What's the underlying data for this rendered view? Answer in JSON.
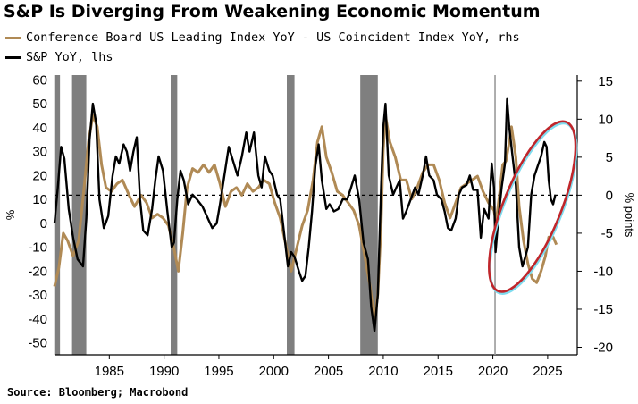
{
  "title": "S&P Is Diverging From Weakening Economic Momentum",
  "source": "Source: Bloomberg; Macrobond",
  "colors": {
    "leading_series": "#b08a55",
    "sp_series": "#000000",
    "recession": "#7f7f7f",
    "highlight": "#c0262b",
    "highlight_glow": "#7fdcef"
  },
  "chart_data": {
    "type": "line",
    "x_range": [
      1980.0,
      2027.7
    ],
    "left_ylim": [
      -55,
      62
    ],
    "right_ylim": [
      -21,
      15.8
    ],
    "left_ylabel": "%",
    "right_ylabel": "% points",
    "left_ticks": [
      "60",
      "50",
      "40",
      "30",
      "20",
      "10",
      "0",
      "-10",
      "-20",
      "-30",
      "-40",
      "-50"
    ],
    "right_ticks": [
      "15",
      "10",
      "5",
      "0",
      "-5",
      "-10",
      "-15",
      "-20"
    ],
    "x_ticks": [
      "1985",
      "1990",
      "1995",
      "2000",
      "2005",
      "2010",
      "2015",
      "2020",
      "2025"
    ],
    "reference_line": {
      "axis": "right",
      "value": 0,
      "style": "dashed"
    },
    "event_line_x": 2020.2,
    "recession_bands": [
      [
        1980.0,
        1980.5
      ],
      [
        1981.6,
        1982.9
      ],
      [
        1990.6,
        1991.2
      ],
      [
        2001.2,
        2001.9
      ],
      [
        2007.9,
        2009.5
      ]
    ],
    "series": [
      {
        "name": "Conference Board US Leading Index YoY - US Coincident Index YoY, rhs",
        "axis": "right",
        "points": [
          [
            1980.0,
            -12
          ],
          [
            1980.4,
            -9.5
          ],
          [
            1980.8,
            -5
          ],
          [
            1981.2,
            -6
          ],
          [
            1981.7,
            -8
          ],
          [
            1982.2,
            -6
          ],
          [
            1982.7,
            1
          ],
          [
            1983.1,
            7
          ],
          [
            1983.5,
            10.5
          ],
          [
            1983.9,
            9
          ],
          [
            1984.3,
            4
          ],
          [
            1984.7,
            1
          ],
          [
            1985.2,
            0.5
          ],
          [
            1985.7,
            1.5
          ],
          [
            1986.2,
            2
          ],
          [
            1986.8,
            0
          ],
          [
            1987.3,
            -1.5
          ],
          [
            1987.9,
            0
          ],
          [
            1988.4,
            -1
          ],
          [
            1988.9,
            -3
          ],
          [
            1989.4,
            -2.5
          ],
          [
            1989.9,
            -3
          ],
          [
            1990.4,
            -4
          ],
          [
            1990.9,
            -7
          ],
          [
            1991.3,
            -10
          ],
          [
            1991.7,
            -5
          ],
          [
            1992.1,
            1
          ],
          [
            1992.6,
            3.5
          ],
          [
            1993.1,
            3
          ],
          [
            1993.6,
            4
          ],
          [
            1994.1,
            3
          ],
          [
            1994.6,
            4
          ],
          [
            1995.1,
            1.5
          ],
          [
            1995.6,
            -1.5
          ],
          [
            1996.1,
            0.5
          ],
          [
            1996.6,
            1
          ],
          [
            1997.1,
            0
          ],
          [
            1997.6,
            1.5
          ],
          [
            1998.1,
            0.5
          ],
          [
            1998.6,
            1
          ],
          [
            1999.1,
            2
          ],
          [
            1999.6,
            1.5
          ],
          [
            2000.1,
            -1
          ],
          [
            2000.6,
            -3
          ],
          [
            2001.1,
            -6.5
          ],
          [
            2001.6,
            -10
          ],
          [
            2002.1,
            -7
          ],
          [
            2002.6,
            -4
          ],
          [
            2003.1,
            -2
          ],
          [
            2003.6,
            2
          ],
          [
            2004.0,
            7
          ],
          [
            2004.4,
            9
          ],
          [
            2004.8,
            5
          ],
          [
            2005.3,
            3
          ],
          [
            2005.8,
            0.5
          ],
          [
            2006.3,
            0
          ],
          [
            2006.8,
            -1
          ],
          [
            2007.3,
            -2
          ],
          [
            2007.8,
            -4
          ],
          [
            2008.3,
            -8
          ],
          [
            2008.8,
            -12
          ],
          [
            2009.2,
            -16.5
          ],
          [
            2009.5,
            -13
          ],
          [
            2009.8,
            -4
          ],
          [
            2010.0,
            6
          ],
          [
            2010.2,
            10.5
          ],
          [
            2010.6,
            7
          ],
          [
            2011.1,
            5
          ],
          [
            2011.6,
            2
          ],
          [
            2012.1,
            2
          ],
          [
            2012.6,
            -0.5
          ],
          [
            2013.1,
            1
          ],
          [
            2013.6,
            3
          ],
          [
            2014.1,
            4
          ],
          [
            2014.6,
            4
          ],
          [
            2015.1,
            2
          ],
          [
            2015.6,
            -1
          ],
          [
            2016.1,
            -3
          ],
          [
            2016.6,
            -1
          ],
          [
            2017.1,
            1
          ],
          [
            2017.6,
            1.5
          ],
          [
            2018.1,
            2
          ],
          [
            2018.6,
            2.5
          ],
          [
            2019.1,
            0.5
          ],
          [
            2019.6,
            -1
          ],
          [
            2020.1,
            -2
          ],
          [
            2020.3,
            -3.5
          ],
          [
            2020.6,
            0
          ],
          [
            2020.9,
            4
          ],
          [
            2021.2,
            4.5
          ],
          [
            2021.5,
            7
          ],
          [
            2021.7,
            9
          ],
          [
            2021.9,
            7
          ],
          [
            2022.1,
            5
          ],
          [
            2022.4,
            -1.5
          ],
          [
            2022.8,
            -6
          ],
          [
            2023.2,
            -9
          ],
          [
            2023.6,
            -11
          ],
          [
            2024.0,
            -11.5
          ],
          [
            2024.4,
            -10
          ],
          [
            2024.8,
            -8
          ],
          [
            2025.1,
            -5.5
          ],
          [
            2025.5,
            -5.5
          ],
          [
            2025.8,
            -6.5
          ]
        ]
      },
      {
        "name": "S&P YoY, lhs",
        "axis": "left",
        "points": [
          [
            1980.0,
            0
          ],
          [
            1980.3,
            15
          ],
          [
            1980.6,
            32
          ],
          [
            1980.9,
            27
          ],
          [
            1981.3,
            6
          ],
          [
            1981.7,
            -6
          ],
          [
            1982.1,
            -15
          ],
          [
            1982.6,
            -18
          ],
          [
            1982.9,
            2
          ],
          [
            1983.2,
            35
          ],
          [
            1983.5,
            50
          ],
          [
            1983.8,
            42
          ],
          [
            1984.1,
            10
          ],
          [
            1984.5,
            -2
          ],
          [
            1984.9,
            3
          ],
          [
            1985.3,
            20
          ],
          [
            1985.6,
            28
          ],
          [
            1985.9,
            25
          ],
          [
            1986.3,
            33
          ],
          [
            1986.6,
            30
          ],
          [
            1986.9,
            22
          ],
          [
            1987.2,
            30
          ],
          [
            1987.5,
            36
          ],
          [
            1987.8,
            10
          ],
          [
            1988.1,
            -3
          ],
          [
            1988.5,
            -5
          ],
          [
            1988.9,
            6
          ],
          [
            1989.2,
            18
          ],
          [
            1989.5,
            28
          ],
          [
            1989.9,
            22
          ],
          [
            1990.3,
            5
          ],
          [
            1990.7,
            -10
          ],
          [
            1990.9,
            -8
          ],
          [
            1991.2,
            10
          ],
          [
            1991.5,
            22
          ],
          [
            1991.8,
            18
          ],
          [
            1992.2,
            8
          ],
          [
            1992.6,
            12
          ],
          [
            1993.0,
            10
          ],
          [
            1993.5,
            7
          ],
          [
            1994.0,
            2
          ],
          [
            1994.4,
            -2
          ],
          [
            1994.8,
            0
          ],
          [
            1995.1,
            8
          ],
          [
            1995.5,
            20
          ],
          [
            1995.9,
            32
          ],
          [
            1996.3,
            26
          ],
          [
            1996.7,
            20
          ],
          [
            1997.1,
            28
          ],
          [
            1997.5,
            38
          ],
          [
            1997.8,
            30
          ],
          [
            1998.2,
            38
          ],
          [
            1998.6,
            20
          ],
          [
            1998.9,
            15
          ],
          [
            1999.2,
            28
          ],
          [
            1999.6,
            22
          ],
          [
            1999.9,
            20
          ],
          [
            2000.3,
            12
          ],
          [
            2000.6,
            10
          ],
          [
            2000.9,
            -2
          ],
          [
            2001.3,
            -18
          ],
          [
            2001.6,
            -12
          ],
          [
            2001.9,
            -14
          ],
          [
            2002.3,
            -20
          ],
          [
            2002.6,
            -24
          ],
          [
            2002.9,
            -22
          ],
          [
            2003.2,
            -10
          ],
          [
            2003.5,
            5
          ],
          [
            2003.8,
            24
          ],
          [
            2004.1,
            33
          ],
          [
            2004.4,
            18
          ],
          [
            2004.8,
            6
          ],
          [
            2005.1,
            8
          ],
          [
            2005.5,
            5
          ],
          [
            2005.9,
            6
          ],
          [
            2006.3,
            10
          ],
          [
            2006.7,
            10
          ],
          [
            2007.0,
            14
          ],
          [
            2007.4,
            20
          ],
          [
            2007.8,
            10
          ],
          [
            2008.2,
            -8
          ],
          [
            2008.6,
            -15
          ],
          [
            2008.9,
            -35
          ],
          [
            2009.2,
            -45
          ],
          [
            2009.5,
            -30
          ],
          [
            2009.8,
            15
          ],
          [
            2010.0,
            40
          ],
          [
            2010.2,
            50
          ],
          [
            2010.5,
            20
          ],
          [
            2010.9,
            12
          ],
          [
            2011.2,
            15
          ],
          [
            2011.5,
            18
          ],
          [
            2011.8,
            2
          ],
          [
            2012.1,
            5
          ],
          [
            2012.5,
            10
          ],
          [
            2012.9,
            15
          ],
          [
            2013.2,
            12
          ],
          [
            2013.6,
            20
          ],
          [
            2013.9,
            28
          ],
          [
            2014.2,
            20
          ],
          [
            2014.6,
            18
          ],
          [
            2014.9,
            12
          ],
          [
            2015.3,
            10
          ],
          [
            2015.6,
            5
          ],
          [
            2015.9,
            -2
          ],
          [
            2016.2,
            -3
          ],
          [
            2016.6,
            2
          ],
          [
            2016.9,
            12
          ],
          [
            2017.2,
            15
          ],
          [
            2017.6,
            16
          ],
          [
            2017.9,
            20
          ],
          [
            2018.2,
            14
          ],
          [
            2018.6,
            14
          ],
          [
            2018.9,
            -6
          ],
          [
            2019.2,
            6
          ],
          [
            2019.6,
            2
          ],
          [
            2019.9,
            25
          ],
          [
            2020.1,
            15
          ],
          [
            2020.25,
            -12
          ],
          [
            2020.5,
            2
          ],
          [
            2020.8,
            15
          ],
          [
            2021.1,
            25
          ],
          [
            2021.3,
            52
          ],
          [
            2021.5,
            40
          ],
          [
            2021.8,
            28
          ],
          [
            2022.1,
            16
          ],
          [
            2022.4,
            -10
          ],
          [
            2022.7,
            -18
          ],
          [
            2022.9,
            -15
          ],
          [
            2023.2,
            -10
          ],
          [
            2023.5,
            12
          ],
          [
            2023.8,
            20
          ],
          [
            2024.1,
            24
          ],
          [
            2024.4,
            28
          ],
          [
            2024.7,
            34
          ],
          [
            2024.9,
            32
          ],
          [
            2025.1,
            18
          ],
          [
            2025.3,
            10
          ],
          [
            2025.5,
            8
          ],
          [
            2025.7,
            12
          ]
        ]
      }
    ]
  }
}
